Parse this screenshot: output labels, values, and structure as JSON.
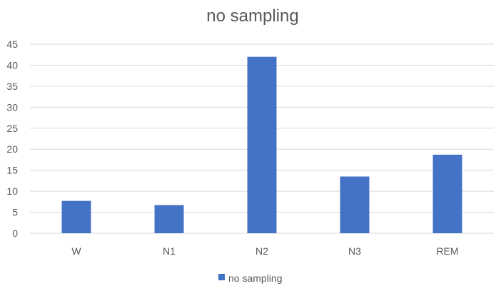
{
  "chart_data": {
    "type": "bar",
    "title": "no sampling",
    "xlabel": "",
    "ylabel": "",
    "categories": [
      "W",
      "N1",
      "N2",
      "N3",
      "REM"
    ],
    "series": [
      {
        "name": "no sampling",
        "values": [
          7.7,
          6.7,
          42.0,
          13.5,
          18.7
        ],
        "color": "#4472C4"
      }
    ],
    "ylim": [
      0,
      45
    ],
    "yticks": [
      "0",
      "5",
      "10",
      "15",
      "20",
      "25",
      "30",
      "35",
      "40",
      "45"
    ],
    "grid": true,
    "legend": "bottom",
    "colors": {
      "bar": "#4472C4",
      "grid": "#D9D9D9",
      "text": "#595959"
    }
  }
}
